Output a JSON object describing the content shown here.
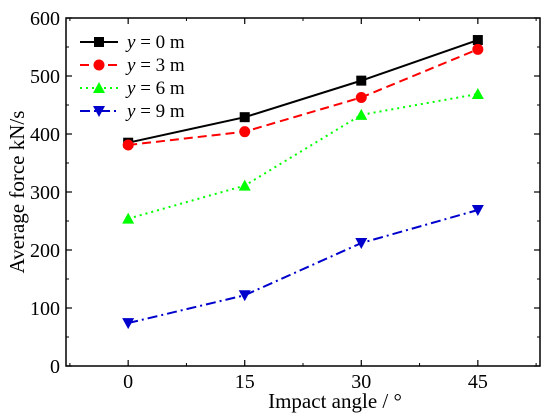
{
  "chart_data": {
    "type": "line",
    "title": "",
    "xlabel": "Impact angle / °",
    "ylabel": "Average force kN/s",
    "x": [
      0,
      15,
      30,
      45
    ],
    "x_ticks": [
      "0",
      "15",
      "30",
      "45"
    ],
    "xlim": [
      -8,
      53
    ],
    "ylim": [
      0,
      600
    ],
    "y_ticks": [
      "0",
      "100",
      "200",
      "300",
      "400",
      "500",
      "600"
    ],
    "grid": false,
    "legend_position": "top-left",
    "series": [
      {
        "name": "y = 0 m",
        "var": "y",
        "rest": " = 0 m",
        "values": [
          385,
          429,
          492,
          562
        ],
        "color": "#000000",
        "marker": "square",
        "dash": "solid"
      },
      {
        "name": "y = 3 m",
        "var": "y",
        "rest": " = 3 m",
        "values": [
          381,
          404,
          463,
          546
        ],
        "color": "#ff0000",
        "marker": "circle",
        "dash": "dashed"
      },
      {
        "name": "y = 6 m",
        "var": "y",
        "rest": " = 6 m",
        "values": [
          254,
          311,
          433,
          469
        ],
        "color": "#00ff00",
        "marker": "triangle-up",
        "dash": "dotted"
      },
      {
        "name": "y = 9 m",
        "var": "y",
        "rest": " = 9 m",
        "values": [
          74,
          122,
          212,
          269
        ],
        "color": "#0000cd",
        "marker": "triangle-down",
        "dash": "dash-dot"
      }
    ]
  }
}
